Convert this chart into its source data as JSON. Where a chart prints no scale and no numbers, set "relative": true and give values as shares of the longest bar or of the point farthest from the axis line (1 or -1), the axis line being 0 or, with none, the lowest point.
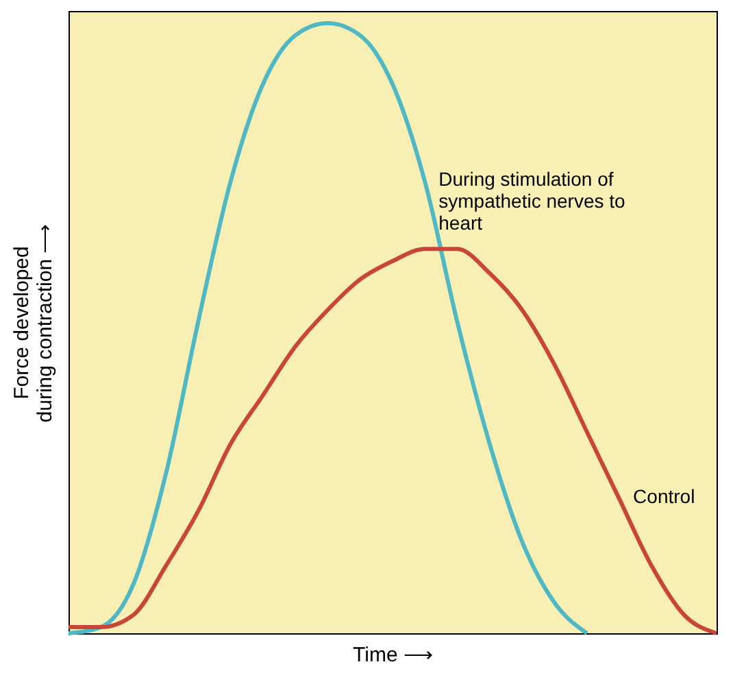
{
  "chart_data": {
    "type": "line",
    "relative": true,
    "xlabel": "Time ⟶",
    "ylabel": "Force developed\nduring contraction ⟶",
    "legend": false,
    "grid": false,
    "tick_labels": false,
    "marker": "none",
    "line_style": "solid",
    "categories": [
      null,
      null,
      null,
      null,
      null,
      null,
      null,
      null,
      null,
      null,
      null,
      null,
      null,
      null,
      null,
      null,
      null,
      null,
      null,
      null,
      null
    ],
    "series": [
      {
        "name": "During stimulation of sympathetic nerves to heart",
        "color": "#4fb8c4",
        "values": [
          0,
          0.01,
          0.08,
          0.26,
          0.51,
          0.74,
          0.9,
          0.98,
          1,
          0.98,
          0.9,
          0.74,
          0.51,
          0.31,
          0.15,
          0.05,
          0,
          null,
          null,
          null,
          null
        ]
      },
      {
        "name": "Control",
        "color": "#c8453a",
        "values": [
          0.01,
          0.01,
          0.03,
          0.11,
          0.2,
          0.31,
          0.39,
          0.47,
          0.53,
          0.58,
          0.61,
          0.63,
          0.63,
          0.59,
          0.53,
          0.44,
          0.33,
          0.22,
          0.11,
          0.03,
          0
        ]
      }
    ]
  }
}
